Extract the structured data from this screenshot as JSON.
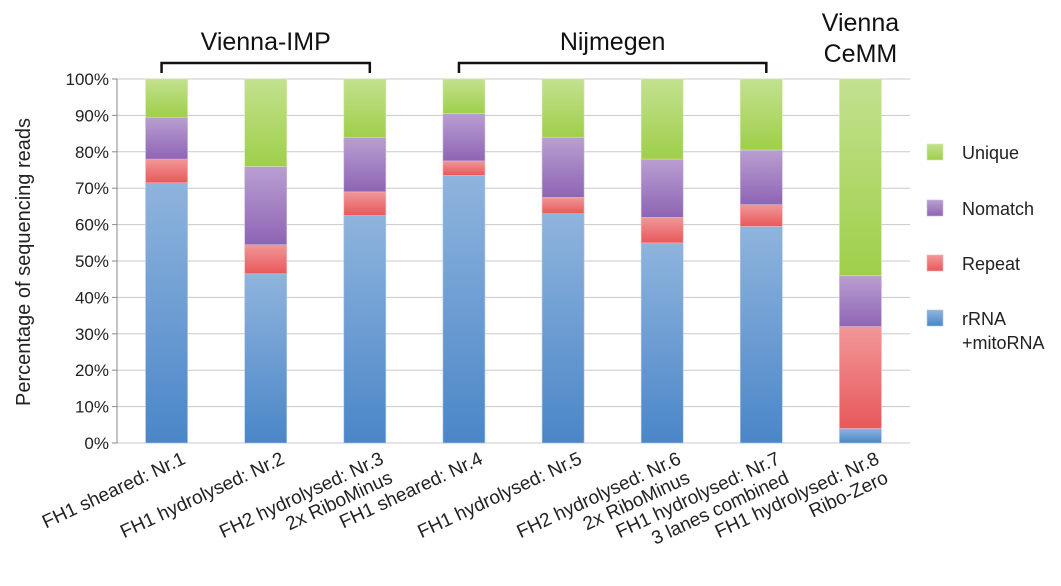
{
  "chart_data": {
    "type": "bar",
    "stacked": true,
    "ylabel": "Percentage of sequencing reads",
    "ylim": [
      0,
      100
    ],
    "yticks": [
      "0%",
      "10%",
      "20%",
      "30%",
      "40%",
      "50%",
      "60%",
      "70%",
      "80%",
      "90%",
      "100%"
    ],
    "grid": true,
    "legend_position": "right",
    "categories": [
      [
        "FH1 sheared: Nr.1"
      ],
      [
        "FH1 hydrolysed: Nr.2"
      ],
      [
        "FH2 hydrolysed: Nr.3",
        "2x RiboMinus"
      ],
      [
        "FH1 sheared: Nr.4"
      ],
      [
        "FH1 hydrolysed: Nr.5"
      ],
      [
        "FH2 hydrolysed: Nr.6",
        "2x RiboMinus"
      ],
      [
        "FH1 hydrolysed: Nr.7",
        "3 lanes combined"
      ],
      [
        "FH1 hydrolysed: Nr.8",
        "Ribo-Zero"
      ]
    ],
    "series": [
      {
        "name": "rRNA +mitoRNA",
        "legend_lines": [
          "rRNA",
          "+mitoRNA"
        ],
        "color": "#4a86c8",
        "values": [
          71.5,
          46.5,
          62.5,
          73.5,
          63,
          55,
          59.5,
          4
        ]
      },
      {
        "name": "Repeat",
        "legend_lines": [
          "Repeat"
        ],
        "color": "#e8585a",
        "values": [
          6.5,
          8,
          6.5,
          4,
          4.5,
          7,
          6,
          28
        ]
      },
      {
        "name": "Nomatch",
        "legend_lines": [
          "Nomatch"
        ],
        "color": "#8e64b4",
        "values": [
          11.5,
          21.5,
          15,
          13,
          16.5,
          16,
          15,
          14
        ]
      },
      {
        "name": "Unique",
        "legend_lines": [
          "Unique"
        ],
        "color": "#9fcf4a",
        "values": [
          10.5,
          24,
          16,
          9.5,
          16,
          22,
          19.5,
          54
        ]
      }
    ],
    "groups": [
      {
        "label": [
          "Vienna-IMP"
        ],
        "from": 0,
        "to": 2,
        "bracket": true
      },
      {
        "label": [
          "Nijmegen"
        ],
        "from": 3,
        "to": 6,
        "bracket": true
      },
      {
        "label": [
          "Vienna",
          "CeMM"
        ],
        "from": 7,
        "to": 7,
        "bracket": false
      }
    ]
  }
}
